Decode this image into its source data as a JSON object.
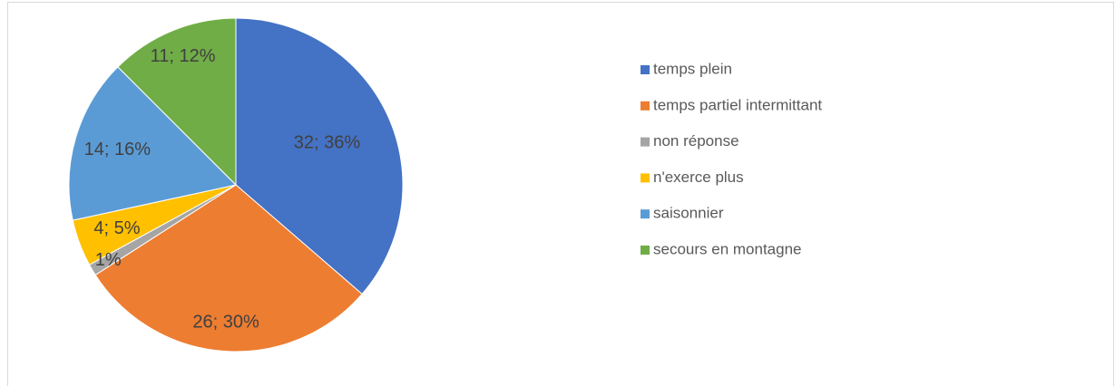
{
  "chart_data": {
    "type": "pie",
    "categories": [
      "temps plein",
      "temps partiel intermittant",
      "non réponse",
      "n'exerce plus",
      "saisonnier",
      "secours en montagne"
    ],
    "values": [
      32,
      26,
      1,
      4,
      14,
      11
    ],
    "value_labels": [
      "32; 36%",
      "26; 30%",
      "1%",
      "4; 5%",
      "14; 16%",
      "11; 12%"
    ],
    "colors": [
      "#4472c4",
      "#ed7d31",
      "#a5a5a5",
      "#ffc000",
      "#5b9bd5",
      "#70ad47"
    ],
    "legend": "right"
  }
}
